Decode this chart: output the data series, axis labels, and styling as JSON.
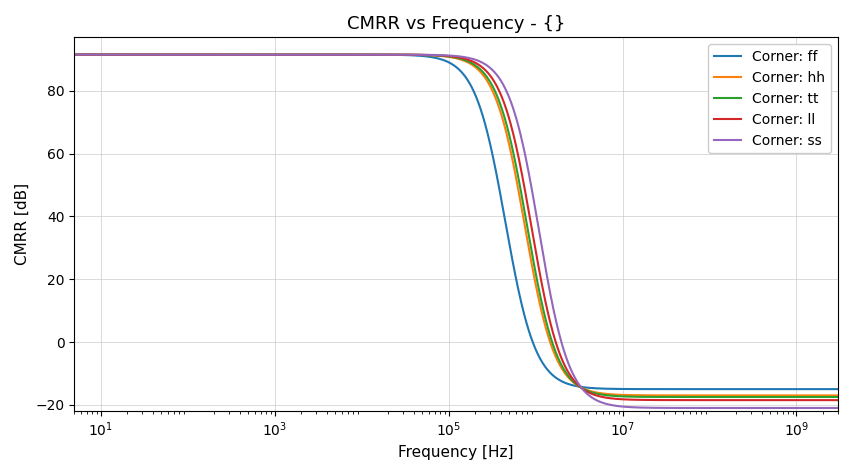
{
  "title": "CMRR vs Frequency - {}",
  "xlabel": "Frequency [Hz]",
  "ylabel": "CMRR [dB]",
  "xmin": 5.0,
  "xmax": 3000000000.0,
  "ymin": -22,
  "ymax": 97,
  "yticks": [
    -20,
    0,
    20,
    40,
    60,
    80
  ],
  "xticks": [
    10,
    1000,
    100000,
    10000000,
    1000000000
  ],
  "grid": true,
  "series": [
    {
      "label": "Corner: ff",
      "color": "#1f77b4",
      "dc_gain": 91.5,
      "f_mid": 450000.0,
      "n": 2.5,
      "hf_floor": -15.0
    },
    {
      "label": "Corner: hh",
      "color": "#ff7f0e",
      "dc_gain": 91.5,
      "f_mid": 750000.0,
      "n": 2.5,
      "hf_floor": -17.0
    },
    {
      "label": "Corner: tt",
      "color": "#2ca02c",
      "dc_gain": 91.5,
      "f_mid": 800000.0,
      "n": 2.5,
      "hf_floor": -17.5
    },
    {
      "label": "Corner: ll",
      "color": "#d62728",
      "dc_gain": 91.5,
      "f_mid": 900000.0,
      "n": 2.5,
      "hf_floor": -18.5
    },
    {
      "label": "Corner: ss",
      "color": "#9467bd",
      "dc_gain": 91.5,
      "f_mid": 1100000.0,
      "n": 2.5,
      "hf_floor": -21.0
    }
  ]
}
